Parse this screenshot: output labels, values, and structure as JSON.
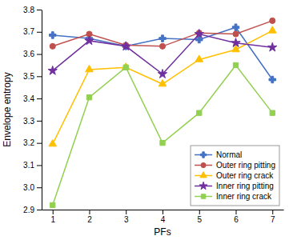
{
  "chart_data": {
    "type": "line",
    "xlabel": "PFs",
    "ylabel": "Envelope entropy",
    "x": [
      1,
      2,
      3,
      4,
      5,
      6,
      7
    ],
    "series": [
      {
        "name": "Normal",
        "color": "#4472C4",
        "marker": "plus",
        "values": [
          3.685,
          3.67,
          3.635,
          3.67,
          3.665,
          3.72,
          3.485
        ]
      },
      {
        "name": "Outer ring pitting",
        "color": "#C0504D",
        "marker": "circle",
        "values": [
          3.635,
          3.69,
          3.64,
          3.635,
          3.695,
          3.69,
          3.75
        ]
      },
      {
        "name": "Outer ring crack",
        "color": "#FFC000",
        "marker": "triangle",
        "values": [
          3.195,
          3.53,
          3.54,
          3.465,
          3.575,
          3.62,
          3.705
        ]
      },
      {
        "name": "Inner ring pitting",
        "color": "#7030A0",
        "marker": "star",
        "values": [
          3.525,
          3.66,
          3.635,
          3.51,
          3.69,
          3.65,
          3.63
        ]
      },
      {
        "name": "Inner ring crack",
        "color": "#92D050",
        "marker": "square",
        "values": [
          2.92,
          3.405,
          3.54,
          3.2,
          3.335,
          3.55,
          3.335
        ]
      }
    ],
    "xlim": [
      0.7,
      7.3
    ],
    "ylim": [
      2.9,
      3.8
    ],
    "xticks": [
      1,
      2,
      3,
      4,
      5,
      6,
      7
    ],
    "yticks": [
      2.9,
      {
        "value": 3.0,
        "label": "3.0"
      },
      3.1,
      3.2,
      3.3,
      3.4,
      3.5,
      3.6,
      3.7,
      3.8
    ],
    "grid": false,
    "legend": "lower right"
  }
}
